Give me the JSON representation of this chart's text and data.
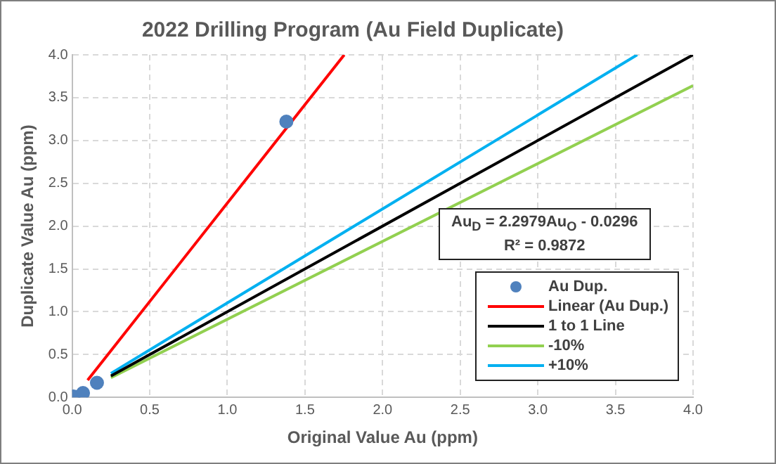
{
  "chart_data": {
    "type": "scatter",
    "title": "2022 Drilling Program (Au Field Duplicate)",
    "xlabel": "Original Value Au (ppm)",
    "ylabel": "Duplicate Value Au (ppm)",
    "xlim": [
      0,
      4
    ],
    "ylim": [
      0,
      4
    ],
    "xticks": [
      {
        "value": 0,
        "label": "0.0"
      },
      {
        "value": 0.5,
        "label": "0.5"
      },
      {
        "value": 1,
        "label": "1.0"
      },
      {
        "value": 1.5,
        "label": "1.5"
      },
      {
        "value": 2,
        "label": "2.0"
      },
      {
        "value": 2.5,
        "label": "2.5"
      },
      {
        "value": 3,
        "label": "3.0"
      },
      {
        "value": 3.5,
        "label": "3.5"
      },
      {
        "value": 4,
        "label": "4.0"
      }
    ],
    "yticks": [
      {
        "value": 0,
        "label": "0.0"
      },
      {
        "value": 0.5,
        "label": "0.5"
      },
      {
        "value": 1,
        "label": "1.0"
      },
      {
        "value": 1.5,
        "label": "1.5"
      },
      {
        "value": 2,
        "label": "2.0"
      },
      {
        "value": 2.5,
        "label": "2.5"
      },
      {
        "value": 3,
        "label": "3.0"
      },
      {
        "value": 3.5,
        "label": "3.5"
      },
      {
        "value": 4,
        "label": "4.0"
      }
    ],
    "grid": true,
    "legend": "bottom right",
    "marker": "circle",
    "annotations": [
      "Au$_{D}$ = 2.2979Au$_{O}$ - 0.0296",
      "R² = 0.9872"
    ],
    "series": [
      {
        "name": "Au Dup.",
        "type": "scatter",
        "color": "#4f81bd",
        "x": [
          0.01,
          0.07,
          0.16,
          1.38
        ],
        "values": [
          0.01,
          0.05,
          0.17,
          3.22
        ]
      },
      {
        "name": "Linear (Au Dup.)",
        "type": "line",
        "color": "#ff0000",
        "marker": "none",
        "line_style": "solid",
        "x": [
          0.1,
          1.753
        ],
        "values": [
          0.2,
          4.0
        ]
      },
      {
        "name": "1 to 1 Line",
        "type": "line",
        "color": "#000000",
        "marker": "none",
        "line_style": "solid",
        "x": [
          0.25,
          4.0
        ],
        "values": [
          0.25,
          4.0
        ]
      },
      {
        "name": "-10%",
        "type": "line",
        "color": "#92d050",
        "marker": "none",
        "line_style": "solid",
        "x": [
          0.25,
          4.0
        ],
        "values": [
          0.23,
          3.64
        ]
      },
      {
        "name": "+10%",
        "type": "line",
        "color": "#00b0f0",
        "marker": "none",
        "line_style": "solid",
        "x": [
          0.25,
          3.64
        ],
        "values": [
          0.28,
          4.0
        ]
      }
    ]
  }
}
